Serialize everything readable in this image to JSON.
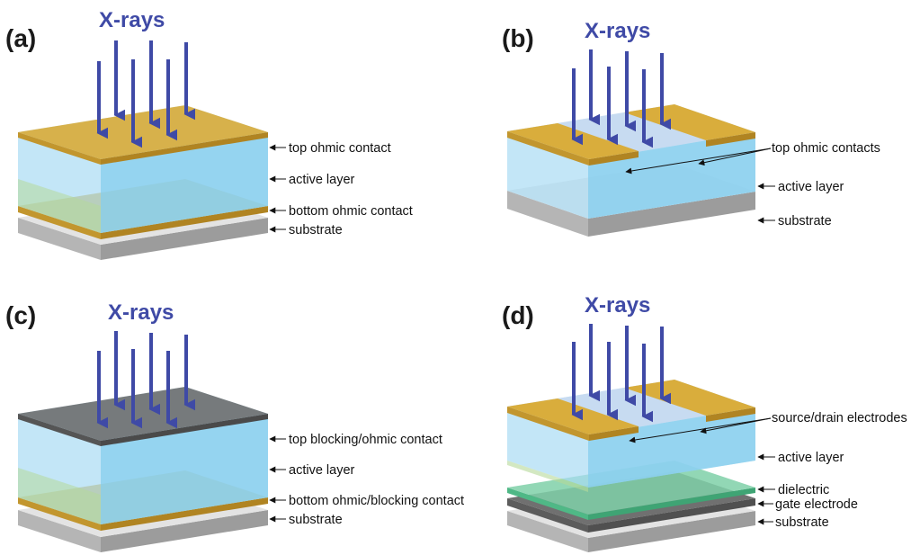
{
  "figure": {
    "panels": [
      {
        "label": "(a)",
        "xray_label": "X-rays",
        "callouts": [
          "top ohmic contact",
          "active layer",
          "bottom ohmic contact",
          "substrate"
        ]
      },
      {
        "label": "(b)",
        "xray_label": "X-rays",
        "callouts": [
          "top ohmic contacts",
          "active layer",
          "substrate"
        ]
      },
      {
        "label": "(c)",
        "xray_label": "X-rays",
        "callouts": [
          "top blocking/ohmic contact",
          "active layer",
          "bottom ohmic/blocking contact",
          "substrate"
        ]
      },
      {
        "label": "(d)",
        "xray_label": "X-rays",
        "callouts": [
          "source/drain electrodes",
          "active layer",
          "dielectric",
          "gate electrode",
          "substrate"
        ]
      }
    ],
    "colors": {
      "xray_arrow": "#3f4aa6",
      "gold_contact": "#d9ad3c",
      "active_layer": "#a9dcf4",
      "substrate": "#c8c8c8",
      "blocking_contact": "#6e6e6e",
      "dielectric": "#7fd0a8",
      "gate_electrode": "#707070"
    }
  }
}
